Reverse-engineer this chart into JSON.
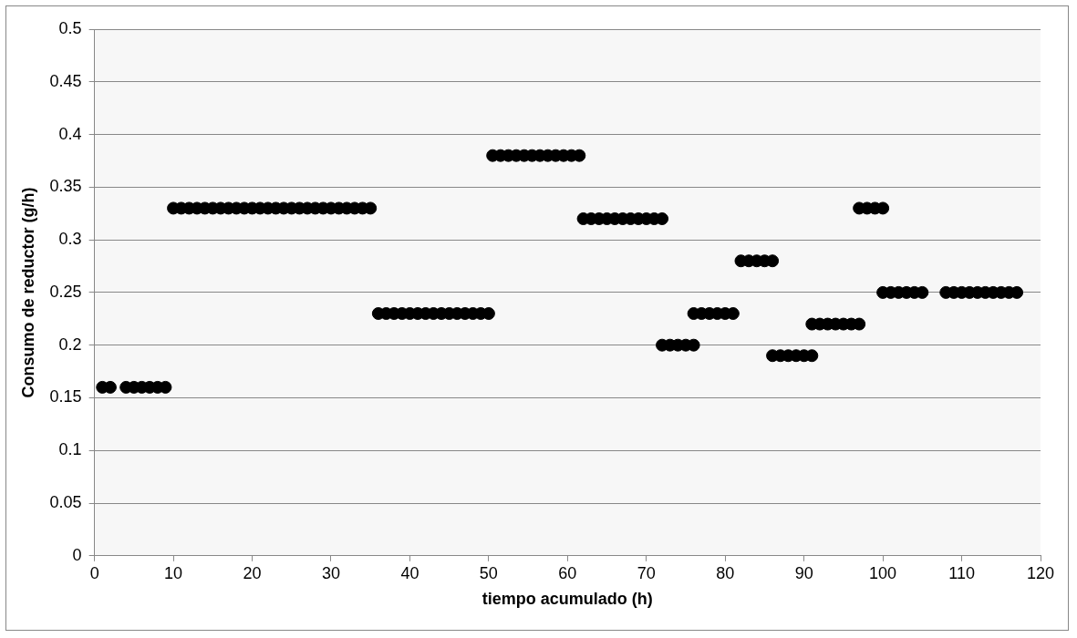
{
  "chart_data": {
    "type": "scatter",
    "xlabel": "tiempo acumulado (h)",
    "ylabel": "Consumo de reductor (g/h)",
    "series": [
      {
        "color": "#000000",
        "x": [
          1,
          2,
          4,
          5,
          6,
          7,
          8,
          9,
          10,
          11,
          12,
          13,
          14,
          15,
          16,
          17,
          18,
          19,
          20,
          21,
          22,
          23,
          24,
          25,
          26,
          27,
          28,
          29,
          30,
          31,
          32,
          33,
          34,
          35,
          36,
          37,
          38,
          39,
          40,
          41,
          42,
          43,
          44,
          45,
          46,
          47,
          48,
          49,
          50,
          50.5,
          51.5,
          52.5,
          53.5,
          54.5,
          55.5,
          56.5,
          57.5,
          58.5,
          59.5,
          60.5,
          61.5,
          62,
          63,
          64,
          65,
          66,
          67,
          68,
          69,
          70,
          71,
          72,
          72,
          73,
          74,
          75,
          76,
          76,
          77,
          78,
          79,
          80,
          81,
          82,
          83,
          84,
          85,
          86,
          86,
          87,
          88,
          89,
          90,
          91,
          91,
          92,
          93,
          94,
          95,
          96,
          97,
          97,
          98,
          99,
          100,
          100,
          101,
          102,
          103,
          104,
          105,
          108,
          109,
          110,
          111,
          112,
          113,
          114,
          115,
          116,
          117
        ],
        "values": [
          0.16,
          0.16,
          0.16,
          0.16,
          0.16,
          0.16,
          0.16,
          0.16,
          0.33,
          0.33,
          0.33,
          0.33,
          0.33,
          0.33,
          0.33,
          0.33,
          0.33,
          0.33,
          0.33,
          0.33,
          0.33,
          0.33,
          0.33,
          0.33,
          0.33,
          0.33,
          0.33,
          0.33,
          0.33,
          0.33,
          0.33,
          0.33,
          0.33,
          0.33,
          0.23,
          0.23,
          0.23,
          0.23,
          0.23,
          0.23,
          0.23,
          0.23,
          0.23,
          0.23,
          0.23,
          0.23,
          0.23,
          0.23,
          0.23,
          0.38,
          0.38,
          0.38,
          0.38,
          0.38,
          0.38,
          0.38,
          0.38,
          0.38,
          0.38,
          0.38,
          0.38,
          0.32,
          0.32,
          0.32,
          0.32,
          0.32,
          0.32,
          0.32,
          0.32,
          0.32,
          0.32,
          0.32,
          0.2,
          0.2,
          0.2,
          0.2,
          0.2,
          0.23,
          0.23,
          0.23,
          0.23,
          0.23,
          0.23,
          0.28,
          0.28,
          0.28,
          0.28,
          0.28,
          0.19,
          0.19,
          0.19,
          0.19,
          0.19,
          0.19,
          0.22,
          0.22,
          0.22,
          0.22,
          0.22,
          0.22,
          0.22,
          0.33,
          0.33,
          0.33,
          0.33,
          0.25,
          0.25,
          0.25,
          0.25,
          0.25,
          0.25,
          0.25,
          0.25,
          0.25,
          0.25,
          0.25,
          0.25,
          0.25,
          0.25,
          0.25,
          0.25
        ]
      }
    ],
    "xlim": [
      0,
      120
    ],
    "xticks": [
      0,
      10,
      20,
      30,
      40,
      50,
      60,
      70,
      80,
      90,
      100,
      110,
      120
    ],
    "ylim": [
      0,
      0.5
    ],
    "yticks": [
      0,
      0.05,
      0.1,
      0.15,
      0.2,
      0.25,
      0.3,
      0.35,
      0.4,
      0.45,
      0.5
    ],
    "grid": "y",
    "legend": false,
    "marker": "circle"
  }
}
